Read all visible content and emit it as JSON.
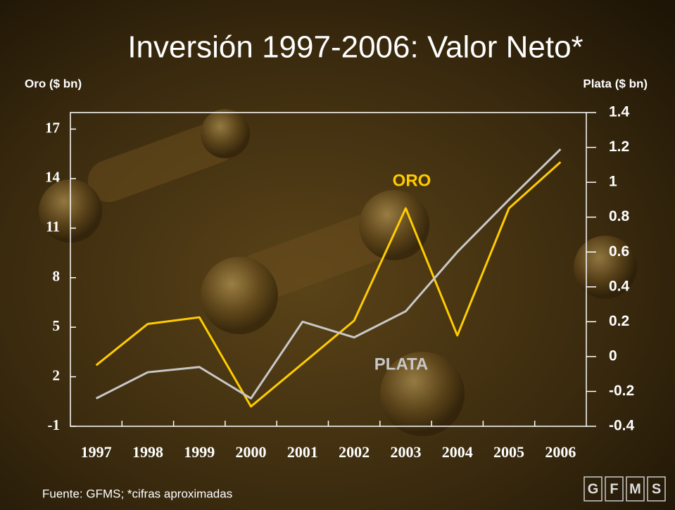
{
  "chart_data": {
    "type": "line",
    "title": "Inversión 1997-2006: Valor Neto*",
    "y_label": "Oro ($ bn)",
    "y2_label": "Plata ($ bn)",
    "categories": [
      "1997",
      "1998",
      "1999",
      "2000",
      "2001",
      "2002",
      "2003",
      "2004",
      "2005",
      "2006"
    ],
    "series": [
      {
        "name": "ORO",
        "color": "#ffcc00",
        "values": [
          2.7,
          5.2,
          5.6,
          0.2,
          2.8,
          5.4,
          12.2,
          4.5,
          12.2,
          15.0
        ]
      },
      {
        "name": "PLATA",
        "color": "#c8c8c8",
        "axis": "y2",
        "values": [
          -0.24,
          -0.09,
          -0.06,
          -0.24,
          0.2,
          0.11,
          0.26,
          0.6,
          0.9,
          1.19
        ]
      }
    ],
    "ylim": [
      -1,
      18
    ],
    "yticks": [
      -1,
      2,
      5,
      8,
      11,
      14,
      17
    ],
    "y2lim": [
      -0.4,
      1.4
    ],
    "y2ticks": [
      -0.4,
      -0.2,
      0,
      0.2,
      0.4,
      0.6,
      0.8,
      1,
      1.2,
      1.4
    ],
    "source": "Fuente: GFMS; *cifras aproximadas",
    "logo": [
      "G",
      "F",
      "M",
      "S"
    ]
  }
}
